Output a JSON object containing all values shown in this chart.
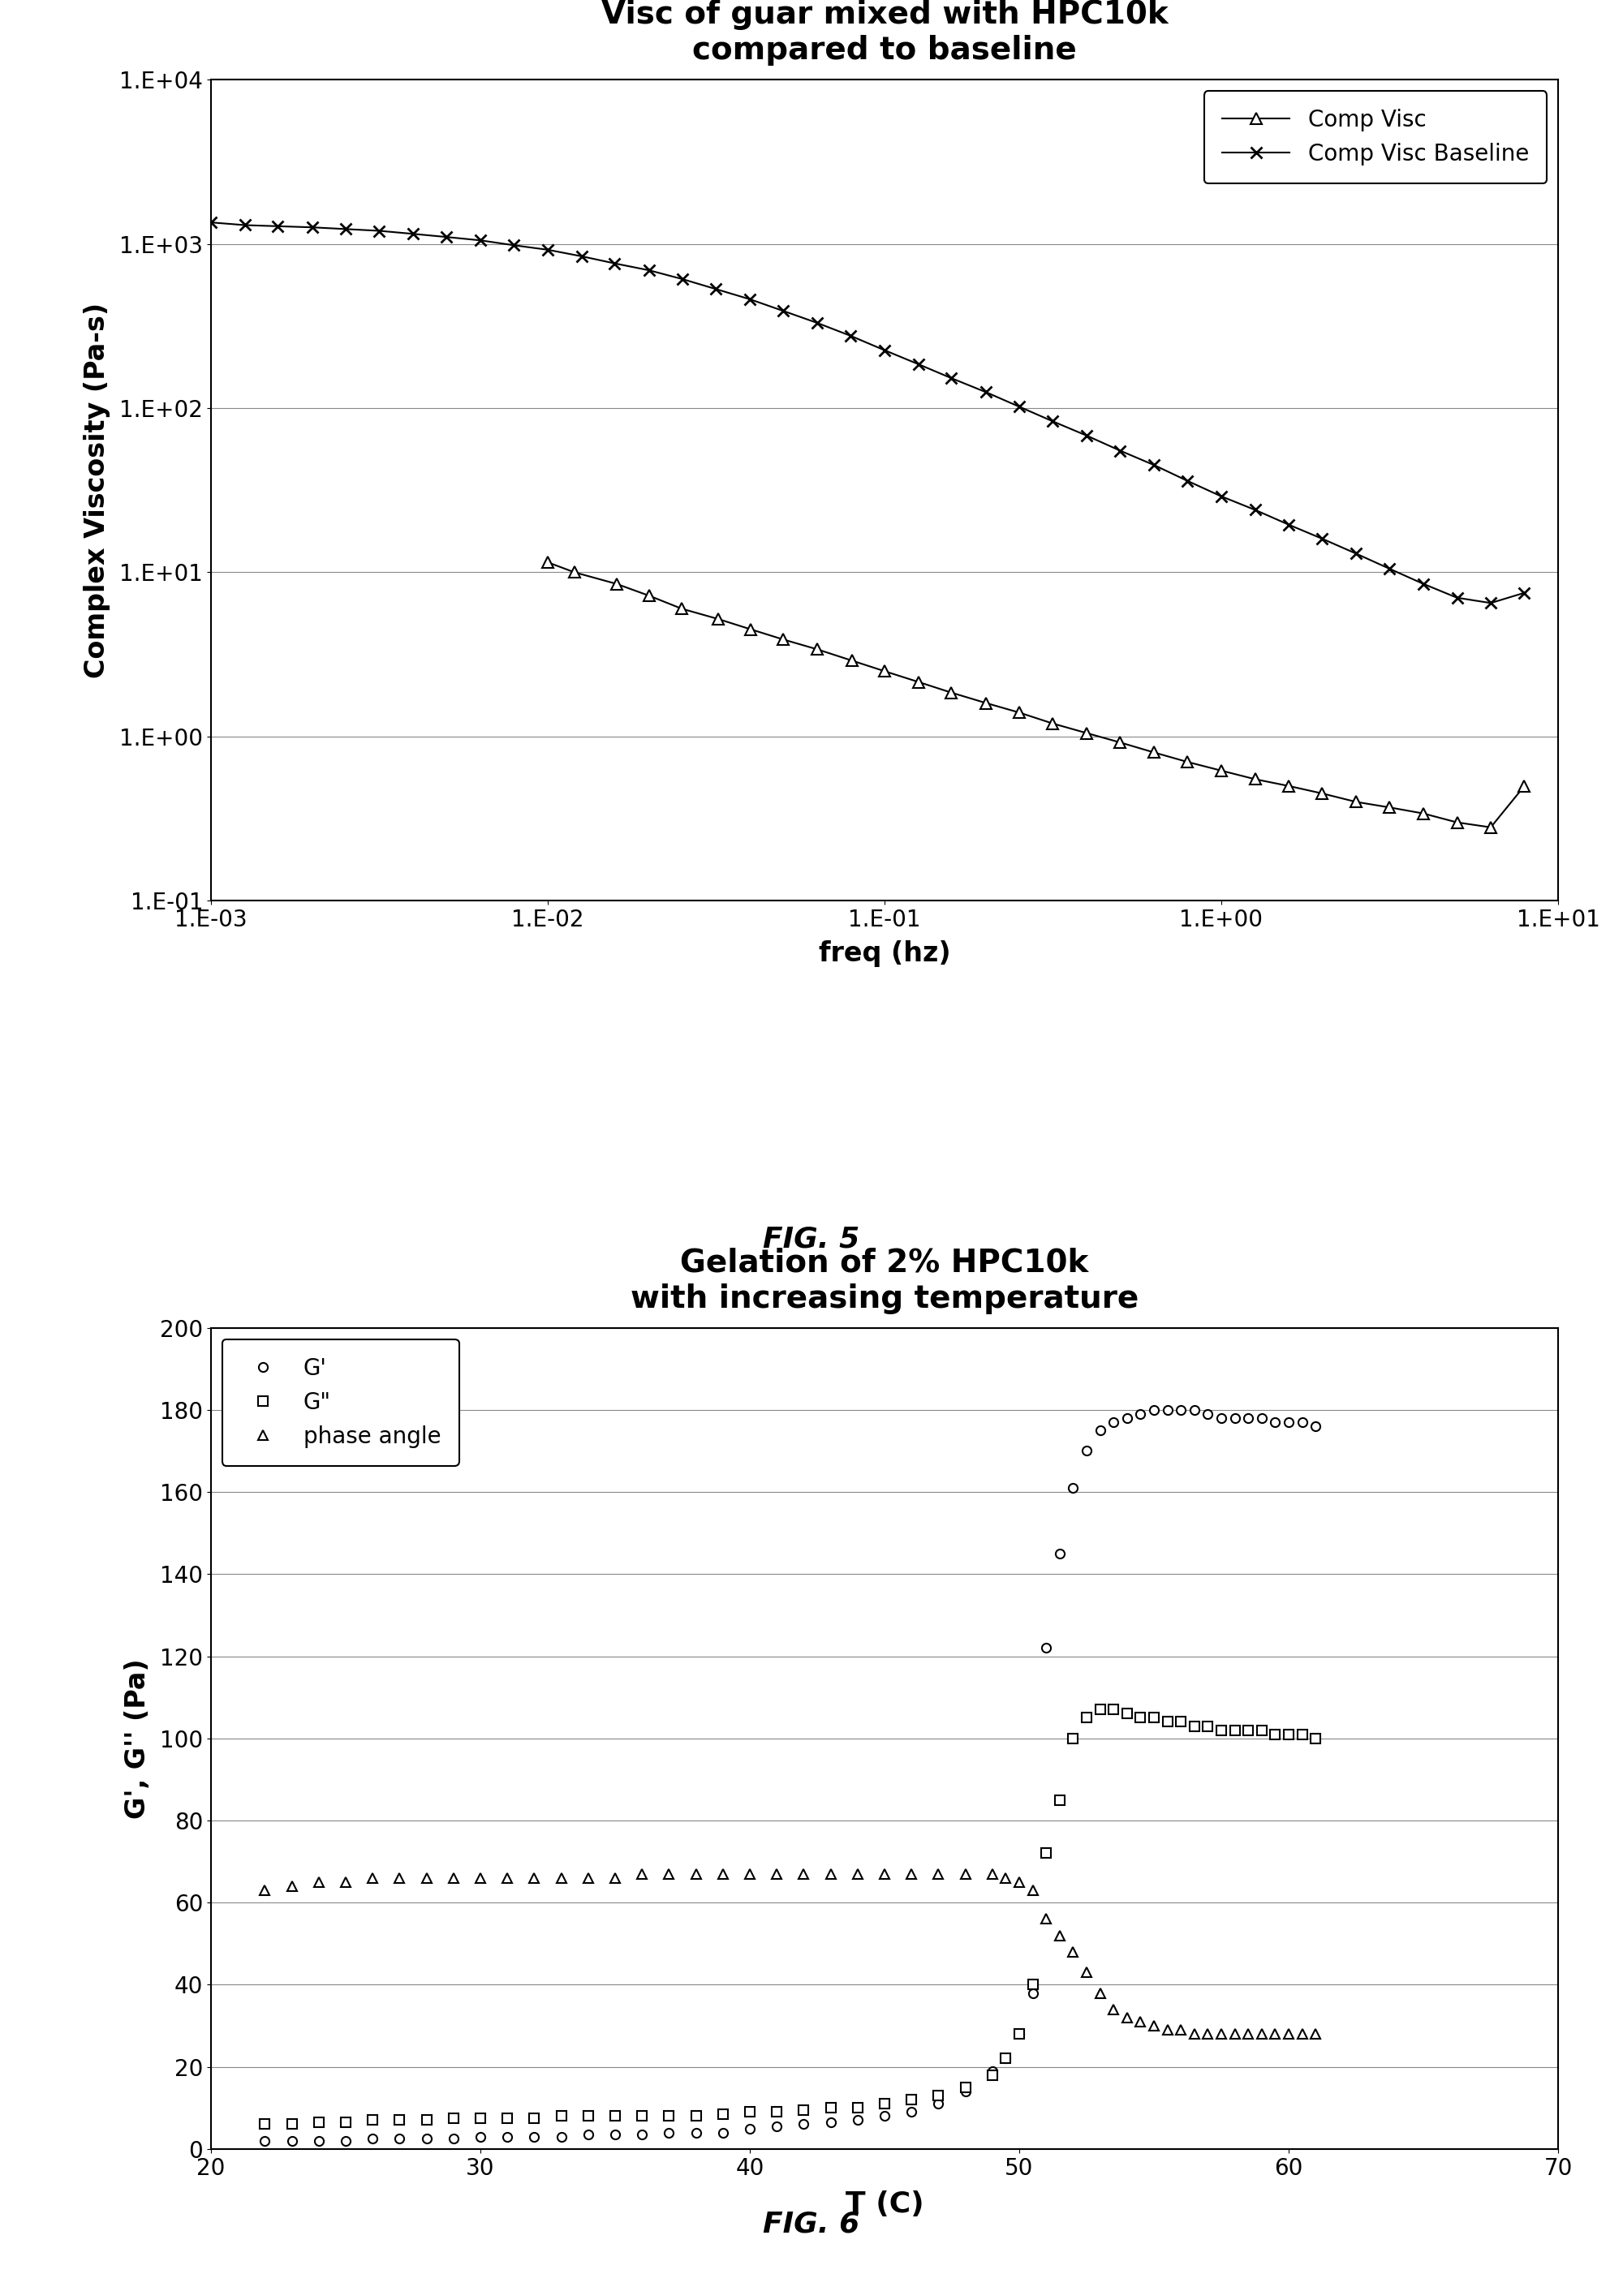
{
  "fig1": {
    "title": "Visc of guar mixed with HPC10k\ncompared to baseline",
    "xlabel": "freq (hz)",
    "ylabel": "Complex Viscosity (Pa-s)",
    "fignum": "FIG. 5",
    "comp_visc_x": [
      0.01,
      0.012,
      0.016,
      0.02,
      0.025,
      0.032,
      0.04,
      0.05,
      0.063,
      0.08,
      0.1,
      0.126,
      0.158,
      0.2,
      0.251,
      0.316,
      0.398,
      0.501,
      0.631,
      0.794,
      1.0,
      1.259,
      1.585,
      1.995,
      2.512,
      3.162,
      3.981,
      5.012,
      6.31,
      7.943
    ],
    "comp_visc_y": [
      11.5,
      10.0,
      8.5,
      7.2,
      6.0,
      5.2,
      4.5,
      3.9,
      3.4,
      2.9,
      2.5,
      2.15,
      1.85,
      1.6,
      1.4,
      1.2,
      1.05,
      0.92,
      0.8,
      0.7,
      0.62,
      0.55,
      0.5,
      0.45,
      0.4,
      0.37,
      0.34,
      0.3,
      0.28,
      0.5
    ],
    "baseline_x": [
      0.001,
      0.00126,
      0.00158,
      0.002,
      0.00251,
      0.00316,
      0.00398,
      0.00501,
      0.00631,
      0.00794,
      0.01,
      0.0126,
      0.0158,
      0.02,
      0.0251,
      0.0316,
      0.0398,
      0.0501,
      0.0631,
      0.0794,
      0.1,
      0.126,
      0.158,
      0.2,
      0.251,
      0.316,
      0.398,
      0.501,
      0.631,
      0.794,
      1.0,
      1.259,
      1.585,
      1.995,
      2.512,
      3.162,
      3.981,
      5.012,
      6.31,
      7.943
    ],
    "baseline_y": [
      1350,
      1300,
      1280,
      1260,
      1230,
      1200,
      1150,
      1100,
      1050,
      980,
      920,
      840,
      760,
      690,
      610,
      530,
      460,
      390,
      330,
      275,
      225,
      185,
      152,
      125,
      102,
      83,
      68,
      55,
      45,
      36,
      29,
      24,
      19.5,
      16,
      13,
      10.5,
      8.5,
      7.0,
      6.5,
      7.5
    ],
    "xtick_vals": [
      0.001,
      0.01,
      0.1,
      1.0,
      10.0
    ],
    "xtick_labels": [
      "1.E-03",
      "1.E-02",
      "1.E-01",
      "1.E+00",
      "1.E+01"
    ],
    "ytick_vals": [
      0.1,
      1.0,
      10.0,
      100.0,
      1000.0,
      10000.0
    ],
    "ytick_labels": [
      "1.E-01",
      "1.E+00",
      "1.E+01",
      "1.E+02",
      "1.E+03",
      "1.E+04"
    ]
  },
  "fig2": {
    "title": "Gelation of 2% HPC10k\nwith increasing temperature",
    "xlabel": "T (C)",
    "ylabel": "G', G'' (Pa)",
    "fignum": "FIG. 6",
    "gprime_x": [
      22,
      23,
      24,
      25,
      26,
      27,
      28,
      29,
      30,
      31,
      32,
      33,
      34,
      35,
      36,
      37,
      38,
      39,
      40,
      41,
      42,
      43,
      44,
      45,
      46,
      47,
      48,
      49,
      49.5,
      50,
      50.5,
      51,
      51.5,
      52,
      52.5,
      53,
      53.5,
      54,
      54.5,
      55,
      55.5,
      56,
      56.5,
      57,
      57.5,
      58,
      58.5,
      59,
      59.5,
      60,
      60.5,
      61
    ],
    "gprime_y": [
      2,
      2,
      2,
      2,
      2.5,
      2.5,
      2.5,
      2.5,
      3,
      3,
      3,
      3,
      3.5,
      3.5,
      3.5,
      4,
      4,
      4,
      5,
      5.5,
      6,
      6.5,
      7,
      8,
      9,
      11,
      14,
      19,
      22,
      28,
      38,
      122,
      145,
      161,
      170,
      175,
      177,
      178,
      179,
      180,
      180,
      180,
      180,
      179,
      178,
      178,
      178,
      178,
      177,
      177,
      177,
      176
    ],
    "gdprime_x": [
      22,
      23,
      24,
      25,
      26,
      27,
      28,
      29,
      30,
      31,
      32,
      33,
      34,
      35,
      36,
      37,
      38,
      39,
      40,
      41,
      42,
      43,
      44,
      45,
      46,
      47,
      48,
      49,
      49.5,
      50,
      50.5,
      51,
      51.5,
      52,
      52.5,
      53,
      53.5,
      54,
      54.5,
      55,
      55.5,
      56,
      56.5,
      57,
      57.5,
      58,
      58.5,
      59,
      59.5,
      60,
      60.5,
      61
    ],
    "gdprime_y": [
      6,
      6,
      6.5,
      6.5,
      7,
      7,
      7,
      7.5,
      7.5,
      7.5,
      7.5,
      8,
      8,
      8,
      8,
      8,
      8,
      8.5,
      9,
      9,
      9.5,
      10,
      10,
      11,
      12,
      13,
      15,
      18,
      22,
      28,
      40,
      72,
      85,
      100,
      105,
      107,
      107,
      106,
      105,
      105,
      104,
      104,
      103,
      103,
      102,
      102,
      102,
      102,
      101,
      101,
      101,
      100
    ],
    "phase_x": [
      22,
      23,
      24,
      25,
      26,
      27,
      28,
      29,
      30,
      31,
      32,
      33,
      34,
      35,
      36,
      37,
      38,
      39,
      40,
      41,
      42,
      43,
      44,
      45,
      46,
      47,
      48,
      49,
      49.5,
      50,
      50.5,
      51,
      51.5,
      52,
      52.5,
      53,
      53.5,
      54,
      54.5,
      55,
      55.5,
      56,
      56.5,
      57,
      57.5,
      58,
      58.5,
      59,
      59.5,
      60,
      60.5,
      61
    ],
    "phase_y": [
      63,
      64,
      65,
      65,
      66,
      66,
      66,
      66,
      66,
      66,
      66,
      66,
      66,
      66,
      67,
      67,
      67,
      67,
      67,
      67,
      67,
      67,
      67,
      67,
      67,
      67,
      67,
      67,
      66,
      65,
      63,
      56,
      52,
      48,
      43,
      38,
      34,
      32,
      31,
      30,
      29,
      29,
      28,
      28,
      28,
      28,
      28,
      28,
      28,
      28,
      28,
      28
    ],
    "xlim": [
      20,
      70
    ],
    "ylim": [
      0,
      200
    ],
    "xticks": [
      20,
      30,
      40,
      50,
      60,
      70
    ],
    "yticks": [
      0,
      20,
      40,
      60,
      80,
      100,
      120,
      140,
      160,
      180,
      200
    ]
  },
  "bg_color": "#ffffff",
  "line_color": "#000000",
  "title_fontsize": 28,
  "label_fontsize": 24,
  "tick_fontsize": 20,
  "legend_fontsize": 20,
  "fignum_fontsize": 26
}
